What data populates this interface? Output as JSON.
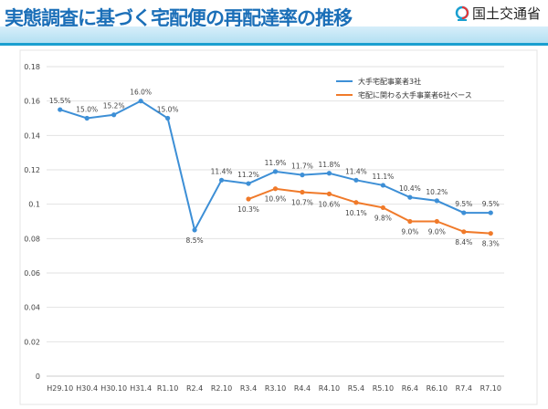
{
  "header": {
    "title": "実態調査に基づく宅配便の再配達率の推移",
    "org": "国土交通省"
  },
  "chart_data": {
    "type": "line",
    "categories": [
      "H29.10",
      "H30.4",
      "H30.10",
      "H31.4",
      "R1.10",
      "R2.4",
      "R2.10",
      "R3.4",
      "R3.10",
      "R4.4",
      "R4.10",
      "R5.4",
      "R5.10",
      "R6.4",
      "R6.10",
      "R7.4",
      "R7.10"
    ],
    "ylim": [
      0,
      0.18
    ],
    "yticks": [
      "0",
      "0.02",
      "0.04",
      "0.06",
      "0.08",
      "0.1",
      "0.12",
      "0.14",
      "0.16",
      "0.18"
    ],
    "grid": true,
    "legend": "top-right",
    "series": [
      {
        "name": "大手宅配事業者3社",
        "color": "#3d8fd6",
        "values": [
          0.155,
          0.15,
          0.152,
          0.16,
          0.15,
          0.085,
          0.114,
          0.112,
          0.119,
          0.117,
          0.118,
          0.114,
          0.111,
          0.104,
          0.102,
          0.095,
          0.095
        ],
        "labels": [
          "15.5%",
          "15.0%",
          "15.2%",
          "16.0%",
          "15.0%",
          "8.5%",
          "11.4%",
          "11.2%",
          "11.9%",
          "11.7%",
          "11.8%",
          "11.4%",
          "11.1%",
          "10.4%",
          "10.2%",
          "9.5%",
          "9.5%"
        ]
      },
      {
        "name": "宅配に関わる大手事業者6社ベース",
        "color": "#f07a2a",
        "values": [
          null,
          null,
          null,
          null,
          null,
          null,
          null,
          0.103,
          0.109,
          0.107,
          0.106,
          0.101,
          0.098,
          0.09,
          0.09,
          0.084,
          0.083
        ],
        "labels": [
          null,
          null,
          null,
          null,
          null,
          null,
          null,
          "10.3%",
          "10.9%",
          "10.7%",
          "10.6%",
          "10.1%",
          "9.8%",
          "9.0%",
          "9.0%",
          "8.4%",
          "8.3%"
        ]
      }
    ]
  }
}
